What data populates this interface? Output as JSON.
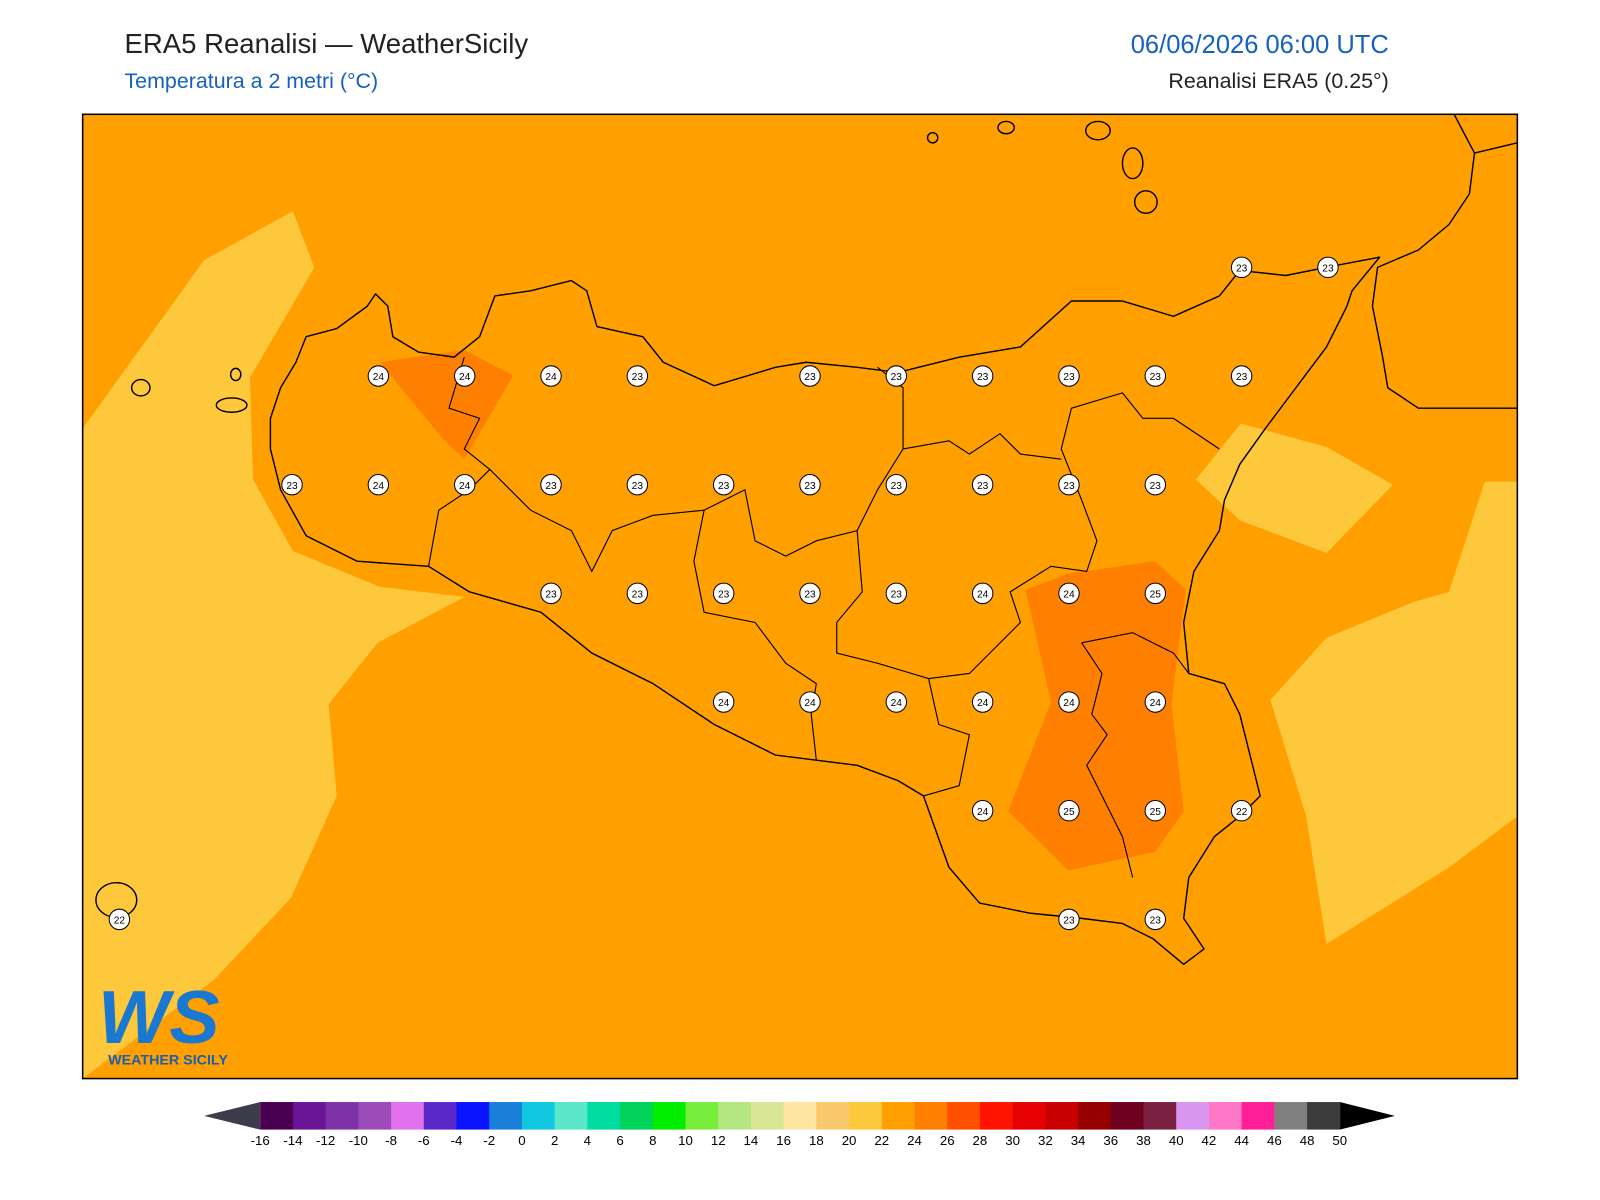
{
  "header": {
    "title": "ERA5 Reanalisi — WeatherSicily",
    "subtitle": "Temperatura a 2 metri (°C)",
    "datetime": "06/06/2026 06:00 UTC",
    "source": "Reanalisi ERA5 (0.25°)"
  },
  "map": {
    "stations": [
      [
        null,
        null,
        null,
        null,
        null,
        null,
        null,
        null,
        null,
        null,
        null,
        null,
        null,
        23,
        23
      ],
      [
        null,
        null,
        null,
        24,
        24,
        24,
        23,
        null,
        23,
        23,
        23,
        23,
        23,
        23,
        null
      ],
      [
        null,
        null,
        23,
        24,
        24,
        23,
        23,
        23,
        23,
        23,
        23,
        23,
        23,
        null,
        null
      ],
      [
        null,
        null,
        null,
        null,
        null,
        23,
        23,
        23,
        23,
        23,
        24,
        24,
        25,
        null,
        null
      ],
      [
        null,
        null,
        null,
        null,
        null,
        null,
        null,
        24,
        24,
        24,
        24,
        24,
        24,
        null,
        null
      ],
      [
        null,
        null,
        null,
        null,
        null,
        null,
        null,
        null,
        null,
        null,
        24,
        25,
        25,
        22,
        null
      ],
      [
        22,
        null,
        null,
        null,
        null,
        null,
        null,
        null,
        null,
        null,
        null,
        23,
        23,
        null,
        null
      ]
    ]
  },
  "logo": {
    "mark": "WS",
    "text": "WEATHER SICILY"
  },
  "colorbar": {
    "ticks": [
      -16,
      -14,
      -12,
      -10,
      -8,
      -6,
      -4,
      -2,
      0,
      2,
      4,
      6,
      8,
      10,
      12,
      14,
      16,
      18,
      20,
      22,
      24,
      26,
      28,
      30,
      32,
      34,
      36,
      38,
      40,
      42,
      44,
      46,
      48,
      50
    ],
    "colors": [
      "#4a0050",
      "#6a1496",
      "#7e32a8",
      "#9c4cb8",
      "#e070ee",
      "#5a28c8",
      "#0a14ff",
      "#1a7fd8",
      "#10c8e0",
      "#5ae6c8",
      "#00dca0",
      "#00d25a",
      "#00ee00",
      "#78ee3c",
      "#b4e682",
      "#d8e696",
      "#fee6a0",
      "#fcc86e",
      "#fcc83c",
      "#ffa000",
      "#ff8000",
      "#ff5000",
      "#ff1400",
      "#e60000",
      "#c80000",
      "#960000",
      "#6e0020",
      "#7a2040",
      "#d896f0",
      "#ff78c8",
      "#ff1e96",
      "#808080",
      "#3c3c3c"
    ],
    "under_color": "#3c3c4a",
    "over_color": "#000000"
  }
}
